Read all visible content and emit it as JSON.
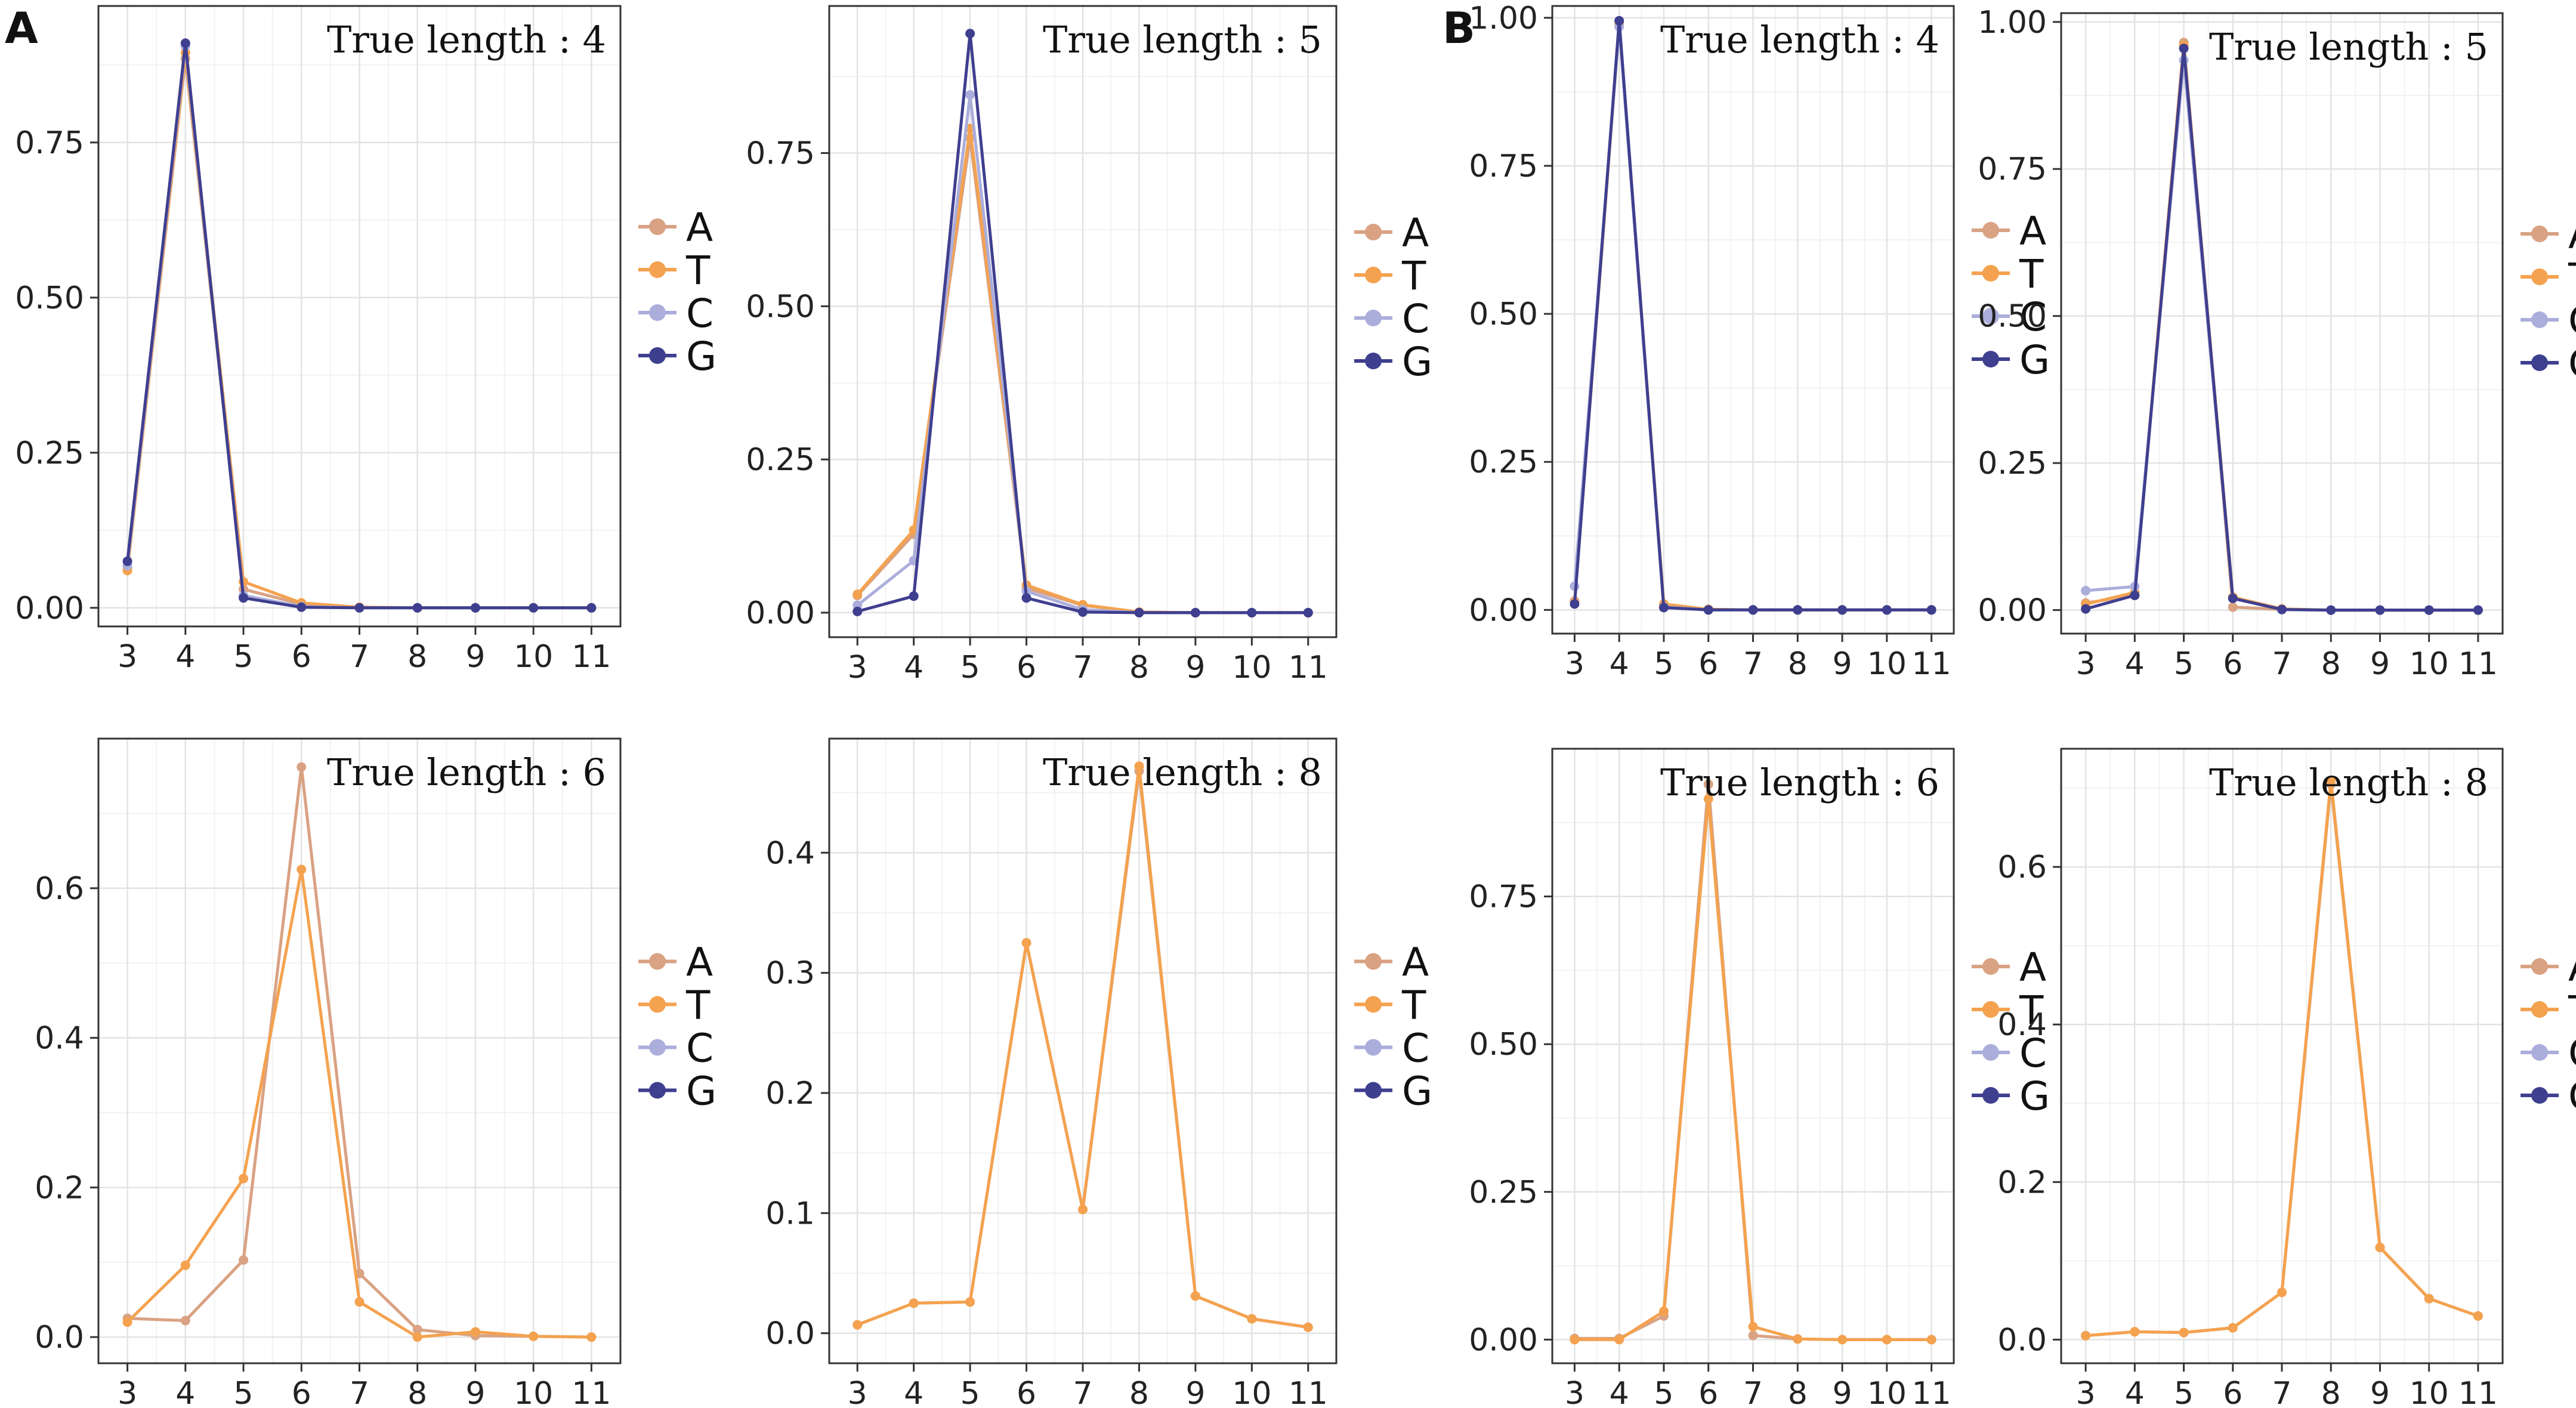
{
  "panel_labels": [
    "A",
    "B"
  ],
  "colors": {
    "A": "#D9A283",
    "T": "#F4A24F",
    "C": "#ABAEDB",
    "G": "#3F3F8F"
  },
  "chart_data": [
    {
      "id": "A1",
      "type": "line",
      "panel": "A",
      "title": "True length : 4",
      "x": [
        3,
        4,
        5,
        6,
        7,
        8,
        9,
        10,
        11
      ],
      "ylim": [
        -0.03,
        0.97
      ],
      "yticks": [
        0,
        0.25,
        0.5,
        0.75
      ],
      "ytick_labels": [
        "0.00",
        "0.25",
        "0.50",
        "0.75"
      ],
      "legend": [
        "A",
        "T",
        "C",
        "G"
      ],
      "series": [
        {
          "name": "A",
          "values": [
            0.065,
            0.885,
            0.03,
            0.006,
            0.001,
            0,
            0,
            0,
            0
          ]
        },
        {
          "name": "T",
          "values": [
            0.06,
            0.895,
            0.042,
            0.008,
            0.001,
            0,
            0,
            0,
            0
          ]
        },
        {
          "name": "C",
          "values": [
            0.068,
            0.905,
            0.02,
            0.002,
            0,
            0,
            0,
            0,
            0
          ]
        },
        {
          "name": "G",
          "values": [
            0.075,
            0.91,
            0.016,
            0.001,
            0,
            0,
            0,
            0,
            0
          ]
        }
      ]
    },
    {
      "id": "A2",
      "type": "line",
      "panel": "A",
      "title": "True length : 5",
      "x": [
        3,
        4,
        5,
        6,
        7,
        8,
        9,
        10,
        11
      ],
      "ylim": [
        -0.04,
        0.99
      ],
      "yticks": [
        0,
        0.25,
        0.5,
        0.75
      ],
      "ytick_labels": [
        "0.00",
        "0.25",
        "0.50",
        "0.75"
      ],
      "legend": [
        "A",
        "T",
        "C",
        "G"
      ],
      "series": [
        {
          "name": "A",
          "values": [
            0.028,
            0.128,
            0.775,
            0.04,
            0.012,
            0.001,
            0,
            0,
            0
          ]
        },
        {
          "name": "T",
          "values": [
            0.03,
            0.135,
            0.79,
            0.045,
            0.013,
            0.001,
            0,
            0,
            0
          ]
        },
        {
          "name": "C",
          "values": [
            0.012,
            0.085,
            0.845,
            0.035,
            0.005,
            0,
            0,
            0,
            0
          ]
        },
        {
          "name": "G",
          "values": [
            0.002,
            0.027,
            0.945,
            0.024,
            0.001,
            0,
            0,
            0,
            0
          ]
        }
      ]
    },
    {
      "id": "A3",
      "type": "line",
      "panel": "A",
      "title": "True length : 6",
      "x": [
        3,
        4,
        5,
        6,
        7,
        8,
        9,
        10,
        11
      ],
      "ylim": [
        -0.035,
        0.8
      ],
      "yticks": [
        0,
        0.2,
        0.4,
        0.6
      ],
      "ytick_labels": [
        "0.0",
        "0.2",
        "0.4",
        "0.6"
      ],
      "legend": [
        "A",
        "T",
        "C",
        "G"
      ],
      "series": [
        {
          "name": "A",
          "values": [
            0.025,
            0.022,
            0.103,
            0.762,
            0.085,
            0.01,
            0.002,
            0.001,
            0
          ]
        },
        {
          "name": "T",
          "values": [
            0.02,
            0.096,
            0.212,
            0.625,
            0.047,
            0,
            0.007,
            0.001,
            0
          ]
        }
      ]
    },
    {
      "id": "A4",
      "type": "line",
      "panel": "A",
      "title": "True length : 8",
      "x": [
        3,
        4,
        5,
        6,
        7,
        8,
        9,
        10,
        11
      ],
      "ylim": [
        -0.025,
        0.495
      ],
      "yticks": [
        0,
        0.1,
        0.2,
        0.3,
        0.4
      ],
      "ytick_labels": [
        "0.0",
        "0.1",
        "0.2",
        "0.3",
        "0.4"
      ],
      "legend": [
        "A",
        "T",
        "C",
        "G"
      ],
      "series": [
        {
          "name": "A",
          "values": [
            0.007,
            0.025,
            0.026,
            0.325,
            0.103,
            0.468,
            0.031,
            0.012,
            0.005
          ]
        },
        {
          "name": "T",
          "values": [
            0.007,
            0.025,
            0.026,
            0.325,
            0.103,
            0.472,
            0.031,
            0.012,
            0.005
          ]
        }
      ]
    },
    {
      "id": "B1",
      "type": "line",
      "panel": "B",
      "title": "True length : 4",
      "x": [
        3,
        4,
        5,
        6,
        7,
        8,
        9,
        10,
        11
      ],
      "ylim": [
        -0.04,
        1.02
      ],
      "yticks": [
        0,
        0.25,
        0.5,
        0.75,
        1.0
      ],
      "ytick_labels": [
        "0.00",
        "0.25",
        "0.50",
        "0.75",
        "1.00"
      ],
      "legend": [
        "A",
        "T",
        "C",
        "G"
      ],
      "series": [
        {
          "name": "A",
          "values": [
            0.015,
            0.99,
            0.008,
            0.001,
            0,
            0,
            0,
            0,
            0
          ]
        },
        {
          "name": "T",
          "values": [
            0.012,
            0.988,
            0.01,
            0.001,
            0,
            0,
            0,
            0,
            0
          ]
        },
        {
          "name": "C",
          "values": [
            0.04,
            0.985,
            0.005,
            0,
            0,
            0,
            0,
            0,
            0
          ]
        },
        {
          "name": "G",
          "values": [
            0.01,
            0.995,
            0.004,
            0,
            0,
            0,
            0,
            0,
            0
          ]
        }
      ]
    },
    {
      "id": "B2",
      "type": "line",
      "panel": "B",
      "title": "True length : 5",
      "x": [
        3,
        4,
        5,
        6,
        7,
        8,
        9,
        10,
        11
      ],
      "ylim": [
        -0.04,
        1.015
      ],
      "yticks": [
        0,
        0.25,
        0.5,
        0.75,
        1.0
      ],
      "ytick_labels": [
        "0.00",
        "0.25",
        "0.50",
        "0.75",
        "1.00"
      ],
      "legend": [
        "A",
        "T",
        "C",
        "G"
      ],
      "series": [
        {
          "name": "A",
          "values": [
            0.012,
            0.025,
            0.965,
            0.005,
            0.001,
            0,
            0,
            0,
            0
          ]
        },
        {
          "name": "T",
          "values": [
            0.01,
            0.03,
            0.96,
            0.022,
            0.002,
            0,
            0,
            0,
            0
          ]
        },
        {
          "name": "C",
          "values": [
            0.033,
            0.04,
            0.935,
            0.02,
            0.001,
            0,
            0,
            0,
            0
          ]
        },
        {
          "name": "G",
          "values": [
            0.002,
            0.025,
            0.955,
            0.02,
            0.001,
            0,
            0,
            0,
            0
          ]
        }
      ]
    },
    {
      "id": "B3",
      "type": "line",
      "panel": "B",
      "title": "True length : 6",
      "x": [
        3,
        4,
        5,
        6,
        7,
        8,
        9,
        10,
        11
      ],
      "ylim": [
        -0.04,
        1.0
      ],
      "yticks": [
        0,
        0.25,
        0.5,
        0.75
      ],
      "ytick_labels": [
        "0.00",
        "0.25",
        "0.50",
        "0.75"
      ],
      "legend": [
        "A",
        "T",
        "C",
        "G"
      ],
      "series": [
        {
          "name": "A",
          "values": [
            0.002,
            0.002,
            0.04,
            0.94,
            0.007,
            0.001,
            0,
            0,
            0
          ]
        },
        {
          "name": "T",
          "values": [
            0.0,
            0.0,
            0.048,
            0.915,
            0.022,
            0.001,
            0,
            0,
            0
          ]
        }
      ]
    },
    {
      "id": "B4",
      "type": "line",
      "panel": "B",
      "title": "True length : 8",
      "x": [
        3,
        4,
        5,
        6,
        7,
        8,
        9,
        10,
        11
      ],
      "ylim": [
        -0.03,
        0.75
      ],
      "yticks": [
        0,
        0.2,
        0.4,
        0.6
      ],
      "ytick_labels": [
        "0.0",
        "0.2",
        "0.4",
        "0.6"
      ],
      "legend": [
        "A",
        "T",
        "C",
        "G"
      ],
      "series": [
        {
          "name": "A",
          "values": [
            0.005,
            0.01,
            0.009,
            0.015,
            0.06,
            0.705,
            0.117,
            0.052,
            0.03
          ]
        },
        {
          "name": "T",
          "values": [
            0.005,
            0.01,
            0.009,
            0.015,
            0.06,
            0.71,
            0.117,
            0.052,
            0.03
          ]
        }
      ]
    }
  ]
}
